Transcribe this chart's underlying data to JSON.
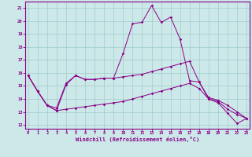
{
  "background_color": "#cde8e8",
  "grid_color": "#a0cccc",
  "line_color": "#880088",
  "xlim_min": -0.3,
  "xlim_max": 23.3,
  "ylim_min": 11.7,
  "ylim_max": 21.5,
  "xticks": [
    0,
    1,
    2,
    3,
    4,
    5,
    6,
    7,
    8,
    9,
    10,
    11,
    12,
    13,
    14,
    15,
    16,
    17,
    18,
    19,
    20,
    21,
    22,
    23
  ],
  "yticks": [
    12,
    13,
    14,
    15,
    16,
    17,
    18,
    19,
    20,
    21
  ],
  "xlabel": "Windchill (Refroidissement éolien,°C)",
  "line1_y": [
    15.8,
    14.6,
    13.5,
    13.1,
    15.1,
    15.8,
    15.5,
    15.5,
    15.6,
    15.6,
    17.5,
    19.8,
    19.9,
    21.2,
    19.9,
    20.3,
    18.6,
    15.4,
    15.3,
    14.0,
    13.7,
    12.9,
    12.1,
    12.5
  ],
  "line2_y": [
    15.8,
    14.6,
    13.5,
    13.3,
    15.2,
    15.8,
    15.5,
    15.5,
    15.6,
    15.6,
    15.7,
    15.8,
    15.9,
    16.1,
    16.3,
    16.5,
    16.7,
    16.9,
    15.3,
    14.1,
    13.9,
    13.5,
    13.0,
    12.5
  ],
  "line3_y": [
    15.8,
    14.6,
    13.5,
    13.1,
    13.2,
    13.3,
    13.4,
    13.5,
    13.6,
    13.7,
    13.8,
    14.0,
    14.2,
    14.4,
    14.6,
    14.8,
    15.0,
    15.2,
    14.8,
    14.0,
    13.8,
    13.2,
    12.8,
    12.5
  ]
}
